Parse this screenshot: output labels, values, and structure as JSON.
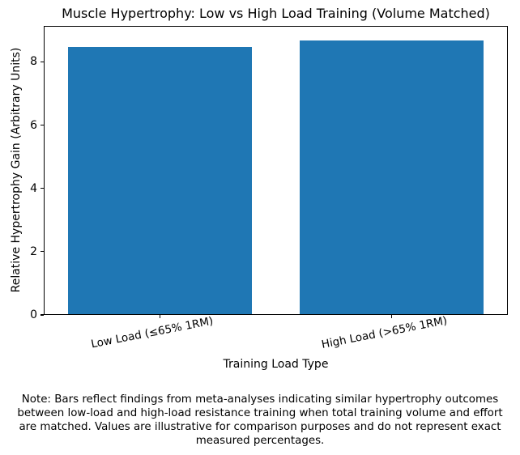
{
  "chart_data": {
    "type": "bar",
    "title": "Muscle Hypertrophy: Low vs High Load Training (Volume Matched)",
    "categories": [
      "Low Load (≤65% 1RM)",
      "High Load (>65% 1RM)"
    ],
    "values": [
      8.5,
      8.7
    ],
    "xlabel": "Training Load Type",
    "ylabel": "Relative Hypertrophy Gain (Arbitrary Units)",
    "ylim": [
      0,
      9.135
    ],
    "yticks": [
      0,
      2,
      4,
      6,
      8
    ],
    "bar_color": "#1f77b4",
    "bar_width_fraction": 0.398,
    "grid": false,
    "legend_position": "none"
  },
  "note": "Note: Bars reflect findings from meta-analyses indicating similar hypertrophy outcomes between low-load and high-load resistance training when total training volume and effort are matched. Values are illustrative for comparison purposes and do not represent exact measured percentages."
}
